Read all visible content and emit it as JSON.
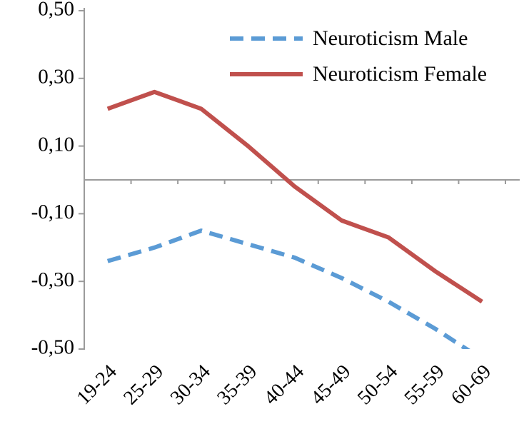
{
  "chart_data": {
    "type": "line",
    "title": "",
    "xlabel": "",
    "ylabel": "",
    "categories": [
      "19-24",
      "25-29",
      "30-34",
      "35-39",
      "40-44",
      "45-49",
      "50-54",
      "55-59",
      "60-69"
    ],
    "series": [
      {
        "name": "Neuroticism Male",
        "style": "dashed",
        "color": "#5B9BD5",
        "values": [
          -0.24,
          -0.2,
          -0.15,
          -0.19,
          -0.23,
          -0.29,
          -0.36,
          -0.44,
          -0.53
        ]
      },
      {
        "name": "Neuroticism Female",
        "style": "solid",
        "color": "#C0504D",
        "values": [
          0.21,
          0.26,
          0.21,
          0.1,
          -0.02,
          -0.12,
          -0.17,
          -0.27,
          -0.36
        ]
      }
    ],
    "y_ticks": [
      {
        "label": "0,50",
        "value": 0.5
      },
      {
        "label": "0,30",
        "value": 0.3
      },
      {
        "label": "0,10",
        "value": 0.1
      },
      {
        "label": "-0,10",
        "value": -0.1
      },
      {
        "label": "-0,30",
        "value": -0.3
      },
      {
        "label": "-0,50",
        "value": -0.5
      }
    ],
    "ylim": [
      -0.5,
      0.5
    ],
    "decimal_separator": ",",
    "grid": false,
    "legend_position": "inside-top-right",
    "zero_baseline": true
  },
  "colors": {
    "male": "#5B9BD5",
    "female": "#C0504D",
    "axis": "#9b9b9b",
    "text": "#000000"
  }
}
